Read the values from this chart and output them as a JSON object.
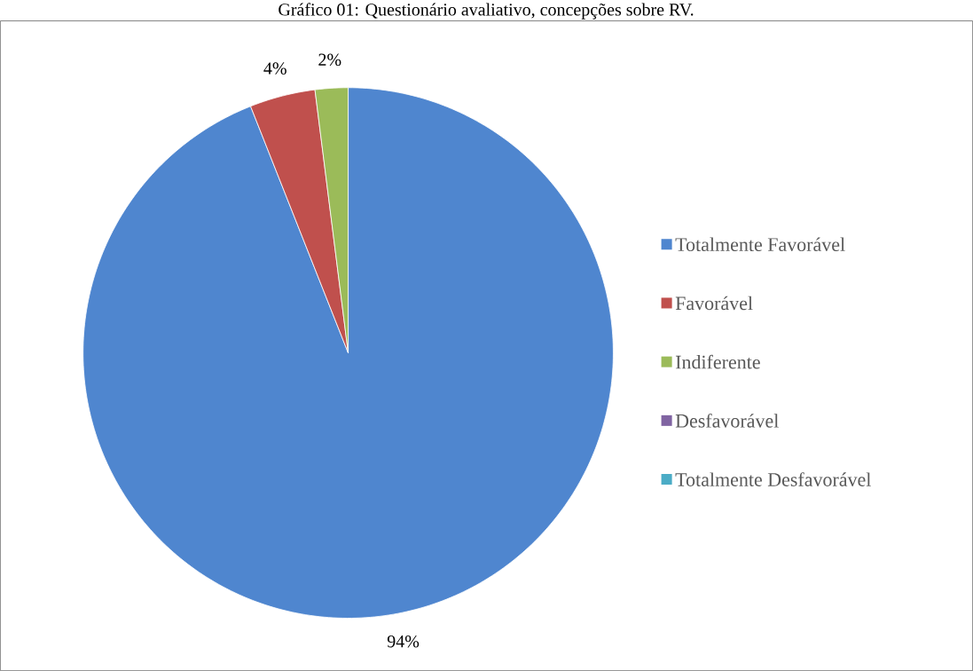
{
  "chart_data": {
    "type": "pie",
    "title": "Gráfico 01: Questionário avaliativo, concepções sobre RV.",
    "categories": [
      "Totalmente Favorável",
      "Favorável",
      "Indiferente",
      "Desfavorável",
      "Totalmente Desfavorável"
    ],
    "values": [
      94,
      4,
      2,
      0,
      0
    ],
    "value_labels": [
      "94%",
      "4%",
      "2%",
      null,
      null
    ],
    "colors": [
      "#4f86cf",
      "#c0504d",
      "#9bbb59",
      "#8064a2",
      "#4bacc6"
    ],
    "legend": "right"
  }
}
